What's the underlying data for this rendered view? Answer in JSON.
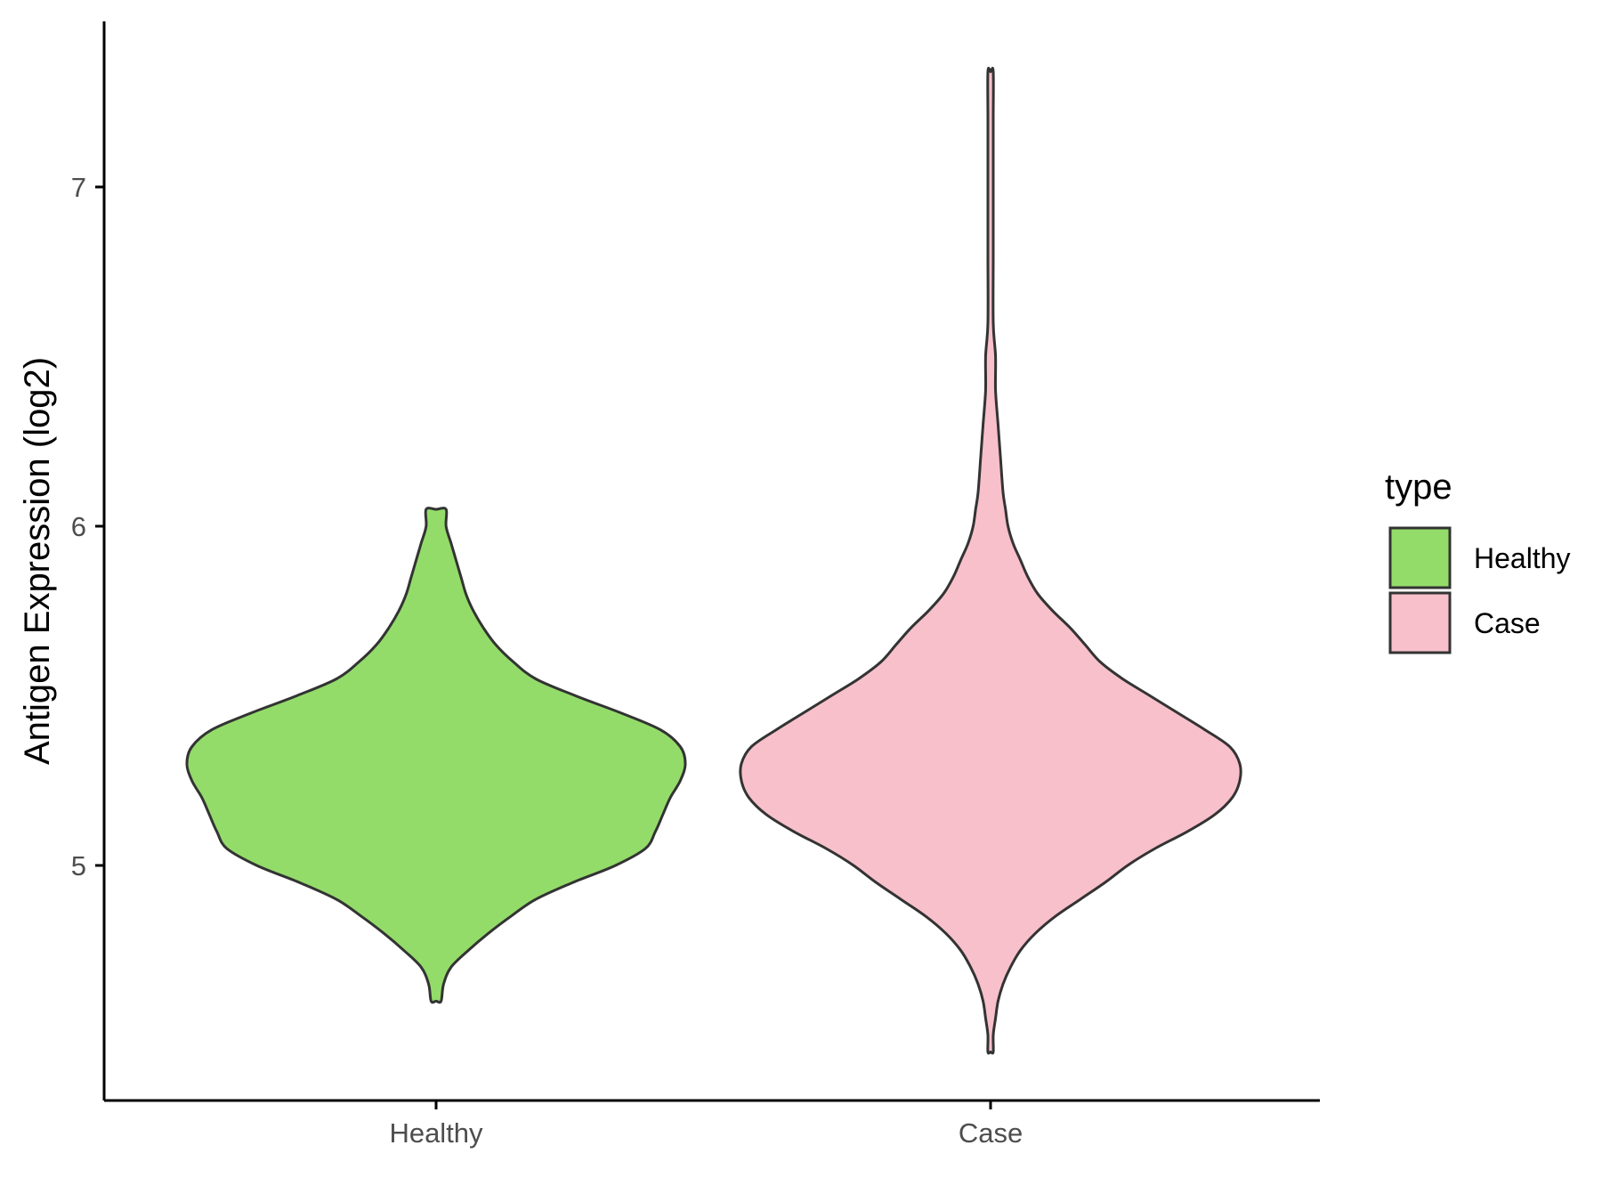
{
  "chart_data": {
    "type": "violin",
    "ylabel": "Antigen Expression (log2)",
    "xlabel": "",
    "categories": [
      "Healthy",
      "Case"
    ],
    "y_ticks": [
      5,
      6,
      7
    ],
    "ylim": [
      4.32,
      7.52
    ],
    "grid": false,
    "legend": {
      "title": "type",
      "position": "right",
      "entries": [
        {
          "label": "Healthy",
          "color": "#93DC6A"
        },
        {
          "label": "Case",
          "color": "#F7C0CB"
        }
      ]
    },
    "series": [
      {
        "category": "Healthy",
        "color": "#93DC6A",
        "y_min": 4.6,
        "y_max": 6.05,
        "density_profile": [
          [
            4.6,
            0.02
          ],
          [
            4.65,
            0.03
          ],
          [
            4.7,
            0.06
          ],
          [
            4.75,
            0.13
          ],
          [
            4.8,
            0.21
          ],
          [
            4.85,
            0.3
          ],
          [
            4.9,
            0.4
          ],
          [
            4.95,
            0.55
          ],
          [
            5.0,
            0.72
          ],
          [
            5.05,
            0.84
          ],
          [
            5.1,
            0.88
          ],
          [
            5.15,
            0.91
          ],
          [
            5.2,
            0.94
          ],
          [
            5.25,
            0.98
          ],
          [
            5.3,
            1.0
          ],
          [
            5.35,
            0.98
          ],
          [
            5.4,
            0.9
          ],
          [
            5.45,
            0.74
          ],
          [
            5.5,
            0.56
          ],
          [
            5.55,
            0.4
          ],
          [
            5.6,
            0.31
          ],
          [
            5.65,
            0.24
          ],
          [
            5.7,
            0.19
          ],
          [
            5.75,
            0.15
          ],
          [
            5.8,
            0.12
          ],
          [
            5.85,
            0.1
          ],
          [
            5.9,
            0.08
          ],
          [
            5.95,
            0.06
          ],
          [
            6.0,
            0.04
          ],
          [
            6.05,
            0.04
          ]
        ]
      },
      {
        "category": "Case",
        "color": "#F7C0CB",
        "y_min": 4.45,
        "y_max": 7.34,
        "density_profile": [
          [
            4.45,
            0.01
          ],
          [
            4.5,
            0.01
          ],
          [
            4.55,
            0.02
          ],
          [
            4.6,
            0.03
          ],
          [
            4.65,
            0.05
          ],
          [
            4.7,
            0.08
          ],
          [
            4.75,
            0.12
          ],
          [
            4.8,
            0.18
          ],
          [
            4.85,
            0.26
          ],
          [
            4.9,
            0.36
          ],
          [
            4.95,
            0.46
          ],
          [
            5.0,
            0.55
          ],
          [
            5.05,
            0.66
          ],
          [
            5.1,
            0.79
          ],
          [
            5.15,
            0.9
          ],
          [
            5.2,
            0.97
          ],
          [
            5.25,
            1.0
          ],
          [
            5.3,
            1.0
          ],
          [
            5.35,
            0.96
          ],
          [
            5.4,
            0.86
          ],
          [
            5.45,
            0.75
          ],
          [
            5.5,
            0.64
          ],
          [
            5.55,
            0.53
          ],
          [
            5.6,
            0.44
          ],
          [
            5.65,
            0.38
          ],
          [
            5.7,
            0.32
          ],
          [
            5.75,
            0.25
          ],
          [
            5.8,
            0.19
          ],
          [
            5.85,
            0.15
          ],
          [
            5.9,
            0.12
          ],
          [
            5.95,
            0.09
          ],
          [
            6.0,
            0.07
          ],
          [
            6.05,
            0.06
          ],
          [
            6.1,
            0.05
          ],
          [
            6.2,
            0.04
          ],
          [
            6.3,
            0.03
          ],
          [
            6.4,
            0.02
          ],
          [
            6.5,
            0.02
          ],
          [
            6.6,
            0.01
          ],
          [
            6.8,
            0.01
          ],
          [
            7.0,
            0.01
          ],
          [
            7.2,
            0.01
          ],
          [
            7.34,
            0.01
          ]
        ]
      }
    ]
  }
}
